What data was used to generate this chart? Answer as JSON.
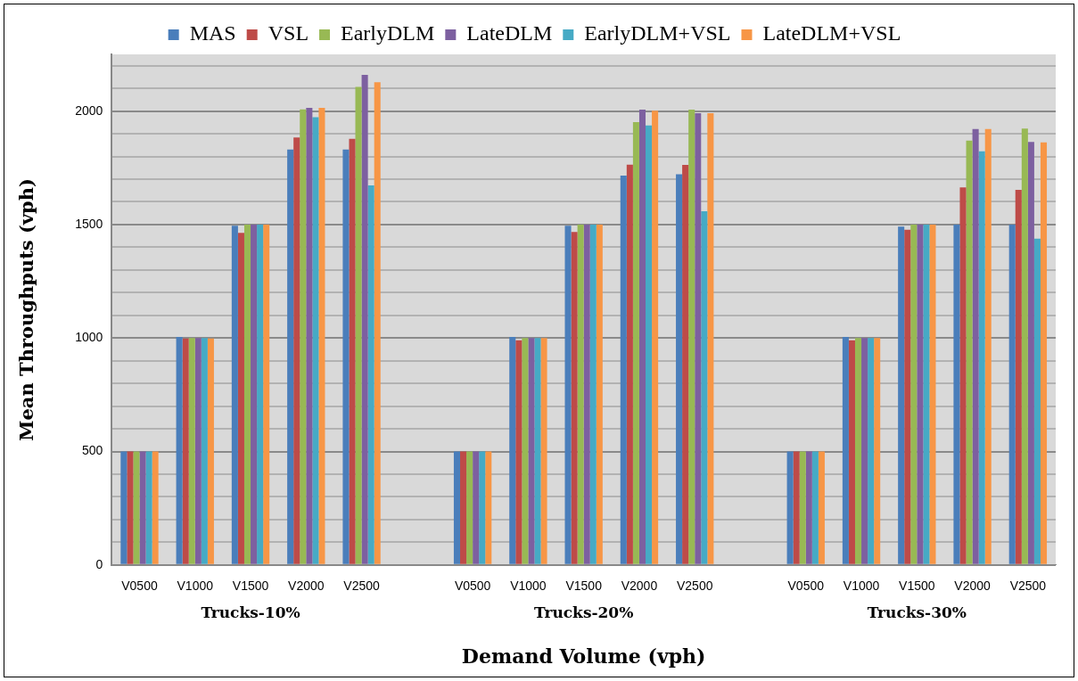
{
  "chart_data": {
    "type": "bar",
    "xlabel": "Demand Volume (vph)",
    "ylabel": "Mean Throughputs (vph)",
    "categories": [
      "V0500",
      "V1000",
      "V1500",
      "V2000",
      "V2500",
      null,
      "V0500",
      "V1000",
      "V1500",
      "V2000",
      "V2500",
      null,
      "V0500",
      "V1000",
      "V1500",
      "V2000",
      "V2500"
    ],
    "annotations": [
      "Trucks-10%",
      "Trucks-20%",
      "Trucks-30%"
    ],
    "series": [
      {
        "name": "MAS",
        "color": "#4a7ebb",
        "values": [
          500,
          1005,
          1495,
          1831,
          1831,
          null,
          500,
          1005,
          1495,
          1716,
          1722,
          null,
          500,
          1005,
          1491,
          1500,
          1500
        ]
      },
      {
        "name": "VSL",
        "color": "#be4b48",
        "values": [
          500,
          998,
          1463,
          1884,
          1878,
          null,
          500,
          990,
          1467,
          1764,
          1763,
          null,
          500,
          990,
          1477,
          1664,
          1653
        ]
      },
      {
        "name": "EarlyDLM",
        "color": "#98b954",
        "values": [
          500,
          1000,
          1500,
          2007,
          2107,
          null,
          500,
          1000,
          1500,
          1951,
          2006,
          null,
          500,
          1000,
          1500,
          1870,
          1923
        ]
      },
      {
        "name": "LateDLM",
        "color": "#7d60a0",
        "values": [
          500,
          1000,
          1500,
          2014,
          2160,
          null,
          500,
          1000,
          1500,
          2006,
          1991,
          null,
          500,
          1000,
          1500,
          1921,
          1864
        ]
      },
      {
        "name": "EarlyDLM+VSL",
        "color": "#46aac5",
        "values": [
          500,
          1000,
          1500,
          1973,
          1673,
          null,
          500,
          1000,
          1500,
          1937,
          1559,
          null,
          500,
          1000,
          1500,
          1823,
          1438
        ]
      },
      {
        "name": "LateDLM+VSL",
        "color": "#f79646",
        "values": [
          500,
          998,
          1500,
          2014,
          2127,
          null,
          500,
          1000,
          1500,
          2002,
          1991,
          null,
          500,
          1000,
          1500,
          1921,
          1862
        ]
      }
    ],
    "ylim": [
      0,
      2250
    ],
    "yticks": [
      0,
      {
        "value": 100,
        "label": null
      },
      {
        "value": 200,
        "label": null
      },
      {
        "value": 300,
        "label": null
      },
      {
        "value": 400,
        "label": null
      },
      500,
      {
        "value": 600,
        "label": null
      },
      {
        "value": 700,
        "label": null
      },
      {
        "value": 800,
        "label": null
      },
      {
        "value": 900,
        "label": null
      },
      1000,
      {
        "value": 1100,
        "label": null
      },
      {
        "value": 1200,
        "label": null
      },
      {
        "value": 1300,
        "label": null
      },
      {
        "value": 1400,
        "label": null
      },
      1500,
      {
        "value": 1600,
        "label": null
      },
      {
        "value": 1700,
        "label": null
      },
      {
        "value": 1800,
        "label": null
      },
      {
        "value": 1900,
        "label": null
      },
      2000,
      {
        "value": 2100,
        "label": null
      },
      {
        "value": 2200,
        "label": null
      }
    ],
    "grid": "y",
    "legend": "top"
  }
}
